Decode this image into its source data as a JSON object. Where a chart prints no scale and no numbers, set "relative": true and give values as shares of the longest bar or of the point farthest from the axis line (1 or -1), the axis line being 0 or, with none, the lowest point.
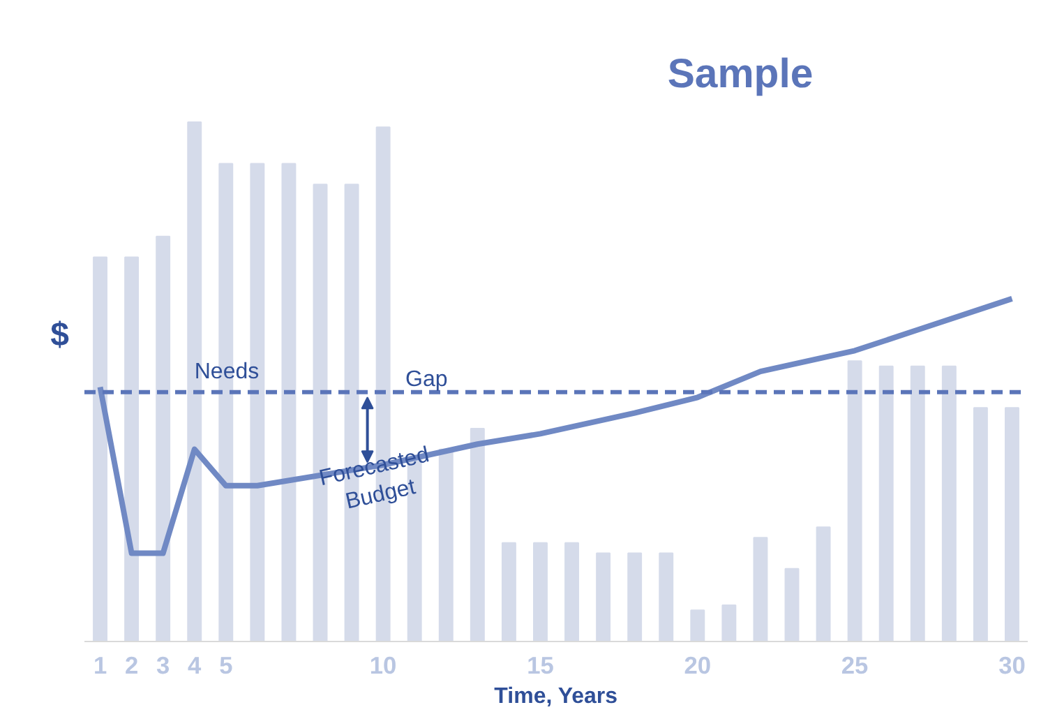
{
  "chart_data": {
    "type": "bar",
    "x": [
      1,
      2,
      3,
      4,
      5,
      6,
      7,
      8,
      9,
      10,
      11,
      12,
      13,
      14,
      15,
      16,
      17,
      18,
      19,
      20,
      21,
      22,
      23,
      24,
      25,
      26,
      27,
      28,
      29,
      30
    ],
    "series": [
      {
        "type": "bar",
        "color": "#d5dbea",
        "values": [
          0.74,
          0.74,
          0.78,
          1.0,
          0.92,
          0.92,
          0.92,
          0.88,
          0.88,
          0.99,
          0.35,
          0.37,
          0.41,
          0.19,
          0.19,
          0.19,
          0.17,
          0.17,
          0.17,
          0.06,
          0.07,
          0.2,
          0.14,
          0.22,
          0.54,
          0.53,
          0.53,
          0.53,
          0.45,
          0.45
        ]
      },
      {
        "type": "line",
        "color": "#7089c4",
        "x": [
          1,
          2,
          3,
          4,
          5,
          6,
          10,
          13,
          15,
          18,
          20,
          22,
          25,
          27,
          30
        ],
        "values": [
          0.49,
          0.17,
          0.17,
          0.37,
          0.3,
          0.3,
          0.34,
          0.38,
          0.4,
          0.44,
          0.47,
          0.52,
          0.56,
          0.6,
          0.66
        ]
      }
    ],
    "relative": true,
    "xlim": [
      0.5,
      30.5
    ],
    "xticks": [
      1,
      2,
      3,
      4,
      5,
      10,
      15,
      20,
      25,
      30
    ],
    "xlabel": "Time, Years",
    "ylabel": "$",
    "tick_labels": "x",
    "legend": false,
    "ref_lines": [
      {
        "axis": "y",
        "value": 0.48,
        "label": "Needs",
        "color": "#5b75b9",
        "line_style": "dashed"
      }
    ],
    "annotations": [
      "Gap",
      {
        "text": "Forecasted\nBudget",
        "x": 10,
        "y": 0.26
      },
      "Sample"
    ]
  }
}
